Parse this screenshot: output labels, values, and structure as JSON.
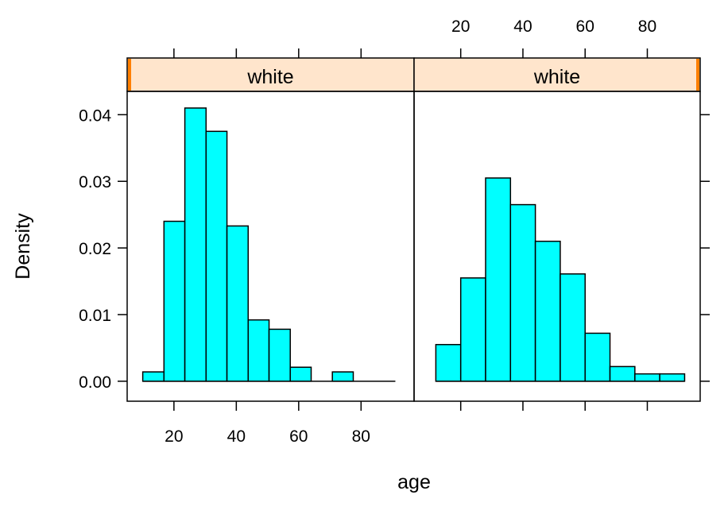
{
  "chart_data": {
    "type": "bar",
    "layout": "trellis-histogram",
    "xlabel": "age",
    "ylabel": "Density",
    "xlim": [
      5,
      97
    ],
    "ylim": [
      -0.003,
      0.0435
    ],
    "x_ticks": [
      20,
      40,
      60,
      80
    ],
    "x_tick_labels": [
      "20",
      "40",
      "60",
      "80"
    ],
    "y_ticks": [
      0.0,
      0.01,
      0.02,
      0.03,
      0.04
    ],
    "y_tick_labels": [
      "0.00",
      "0.01",
      "0.02",
      "0.03",
      "0.04"
    ],
    "bar_color": "#00FFFF",
    "strip_color": "#FFE5CC",
    "strip_indicator_color": "#FF7F00",
    "panels": [
      {
        "strip_label": "white",
        "axis_x_range": [
          10,
          91
        ],
        "bars": [
          {
            "x0": 10.0,
            "x1": 16.8,
            "density": 0.0014
          },
          {
            "x0": 16.8,
            "x1": 23.5,
            "density": 0.024
          },
          {
            "x0": 23.5,
            "x1": 30.3,
            "density": 0.041
          },
          {
            "x0": 30.3,
            "x1": 37.0,
            "density": 0.0375
          },
          {
            "x0": 37.0,
            "x1": 43.8,
            "density": 0.0233
          },
          {
            "x0": 43.8,
            "x1": 50.5,
            "density": 0.0092
          },
          {
            "x0": 50.5,
            "x1": 57.3,
            "density": 0.0078
          },
          {
            "x0": 57.3,
            "x1": 64.0,
            "density": 0.0021
          },
          {
            "x0": 64.0,
            "x1": 70.8,
            "density": 0.0
          },
          {
            "x0": 70.8,
            "x1": 77.5,
            "density": 0.0014
          },
          {
            "x0": 77.5,
            "x1": 84.3,
            "density": 0.0
          },
          {
            "x0": 84.3,
            "x1": 91.0,
            "density": 0.0
          }
        ]
      },
      {
        "strip_label": "white",
        "axis_x_range": [
          12,
          92
        ],
        "bars": [
          {
            "x0": 12.0,
            "x1": 20.0,
            "density": 0.0055
          },
          {
            "x0": 20.0,
            "x1": 28.0,
            "density": 0.0155
          },
          {
            "x0": 28.0,
            "x1": 36.0,
            "density": 0.0305
          },
          {
            "x0": 36.0,
            "x1": 44.0,
            "density": 0.0265
          },
          {
            "x0": 44.0,
            "x1": 52.0,
            "density": 0.021
          },
          {
            "x0": 52.0,
            "x1": 60.0,
            "density": 0.0161
          },
          {
            "x0": 60.0,
            "x1": 68.0,
            "density": 0.0072
          },
          {
            "x0": 68.0,
            "x1": 76.0,
            "density": 0.0022
          },
          {
            "x0": 76.0,
            "x1": 84.0,
            "density": 0.0011
          },
          {
            "x0": 84.0,
            "x1": 92.0,
            "density": 0.0011
          }
        ]
      }
    ]
  }
}
